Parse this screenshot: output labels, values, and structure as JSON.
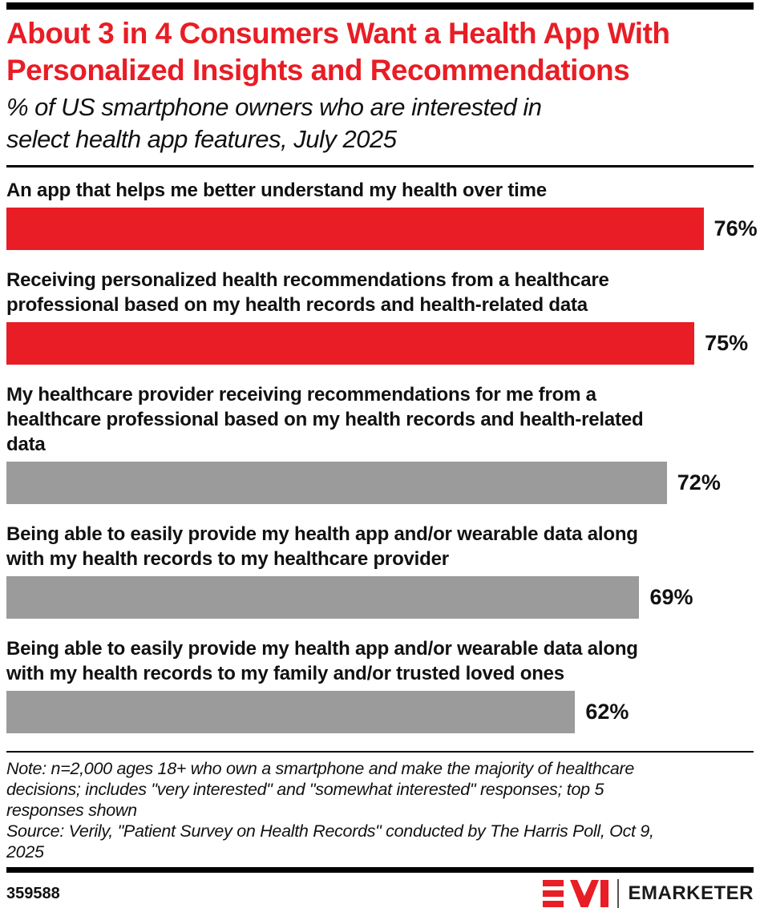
{
  "colors": {
    "accent_red": "#e81d25",
    "bar_gray": "#9b9b9b",
    "text_black": "#111111",
    "divider_black": "#000000"
  },
  "header": {
    "title": "About 3 in 4 Consumers Want a Health App With Personalized Insights and Recommendations",
    "title_lines": [
      "About 3 in 4 Consumers Want a Health App With",
      "Personalized Insights and Recommendations"
    ],
    "subtitle": "% of US smartphone owners who are interested in select health app features, July 2025",
    "subtitle_lines": [
      "% of US smartphone owners who are interested in",
      "select health app features, July 2025"
    ]
  },
  "chart_data": {
    "type": "bar",
    "orientation": "horizontal",
    "unit": "%",
    "axis_shown": false,
    "grid": false,
    "legend": "none",
    "title": "About 3 in 4 Consumers Want a Health App With Personalized Insights and Recommendations",
    "subtitle": "% of US smartphone owners who are interested in select health app features, July 2025",
    "categories": [
      "An app that helps me better understand my health over time",
      "Receiving personalized health recommendations from a healthcare professional based on my health records and health-related data",
      "My healthcare provider receiving recommendations for me from a healthcare professional based on my health records and health-related data",
      "Being able to easily provide my health app and/or wearable data along with my health records to my healthcare provider",
      "Being able to easily provide my health app and/or wearable data along with my health records to my family and/or trusted loved ones"
    ],
    "label_lines": [
      [
        "An app that helps me better understand my health over time"
      ],
      [
        "Receiving personalized health recommendations from a healthcare",
        "professional based on my health records and health-related data"
      ],
      [
        "My healthcare provider receiving recommendations for me from a",
        "healthcare professional based on my health records and health-related",
        "data"
      ],
      [
        "Being able to easily provide my health app and/or wearable data along",
        "with my health records to my healthcare provider"
      ],
      [
        "Being able to easily provide my health app and/or wearable data along",
        "with my health records to my family and/or trusted loved ones"
      ]
    ],
    "values": [
      76,
      75,
      72,
      69,
      62
    ],
    "value_labels": [
      "76%",
      "75%",
      "72%",
      "69%",
      "62%"
    ],
    "bar_colors": [
      "#e81d25",
      "#e81d25",
      "#9b9b9b",
      "#9b9b9b",
      "#9b9b9b"
    ],
    "max_bar_value": 76,
    "max_bar_width_pct": 93.3
  },
  "footnote": {
    "note": "Note: n=2,000 ages 18+ who own a smartphone and make the majority of healthcare decisions; includes \"very interested\" and \"somewhat interested\" responses; top 5 responses shown",
    "note_lines": [
      "Note: n=2,000 ages 18+ who own a smartphone and make the majority of healthcare",
      "decisions; includes \"very interested\" and \"somewhat interested\" responses; top 5",
      "responses shown"
    ],
    "source": "Source: Verily, \"Patient Survey on Health Records\" conducted by The Harris Poll, Oct 9, 2025",
    "source_lines": [
      "Source: Verily, \"Patient Survey on Health Records\" conducted by The Harris Poll, Oct 9,",
      "2025"
    ]
  },
  "footer": {
    "chart_id": "359588",
    "brand": "EMARKETER",
    "logo_monogram": "EM"
  }
}
